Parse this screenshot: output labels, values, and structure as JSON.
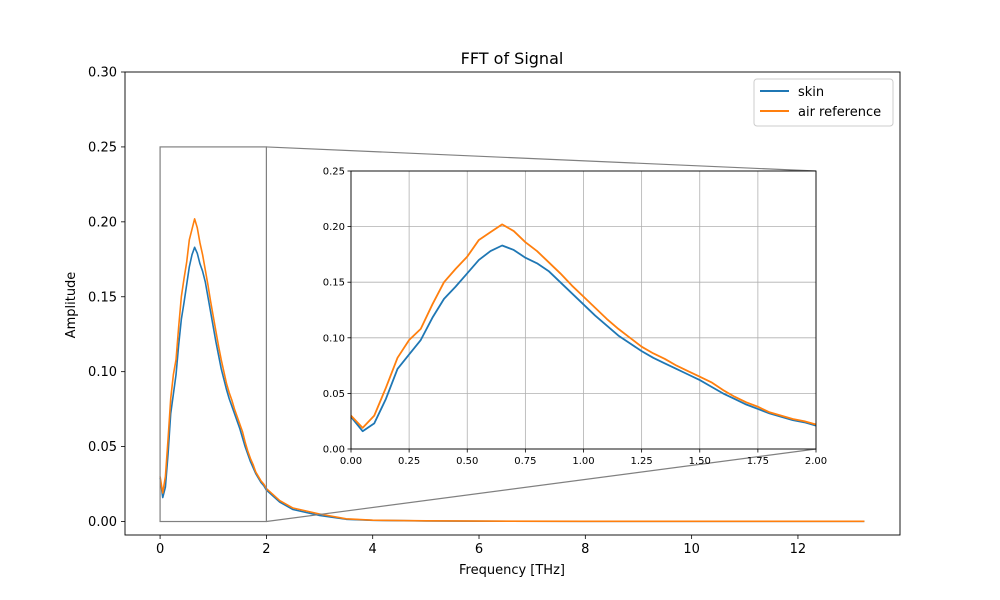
{
  "chart_data": {
    "type": "line",
    "title": "FFT of Signal",
    "xlabel": "Frequency [THz]",
    "ylabel": "Amplitude",
    "xlim": [
      -0.66,
      13.92
    ],
    "ylim": [
      -0.009,
      0.3
    ],
    "xticks": [
      "0",
      "2",
      "4",
      "6",
      "8",
      "10",
      "12"
    ],
    "yticks": [
      "0.00",
      "0.05",
      "0.10",
      "0.15",
      "0.20",
      "0.25",
      "0.30"
    ],
    "legend_position": "top-right",
    "series": [
      {
        "name": "skin",
        "color": "#1f77b4",
        "x": [
          0,
          0.05,
          0.1,
          0.15,
          0.2,
          0.25,
          0.3,
          0.35,
          0.4,
          0.45,
          0.5,
          0.55,
          0.6,
          0.65,
          0.7,
          0.75,
          0.8,
          0.85,
          0.9,
          0.95,
          1.0,
          1.05,
          1.1,
          1.15,
          1.2,
          1.25,
          1.3,
          1.35,
          1.4,
          1.45,
          1.5,
          1.55,
          1.6,
          1.65,
          1.7,
          1.75,
          1.8,
          1.85,
          1.9,
          1.95,
          2.0,
          2.25,
          2.5,
          3.0,
          3.5,
          4.0,
          5.0,
          6.0,
          8.0,
          10.0,
          12.0,
          13.25
        ],
        "y": [
          0.029,
          0.016,
          0.023,
          0.045,
          0.072,
          0.085,
          0.098,
          0.118,
          0.135,
          0.146,
          0.158,
          0.17,
          0.178,
          0.183,
          0.179,
          0.172,
          0.167,
          0.16,
          0.15,
          0.14,
          0.13,
          0.12,
          0.111,
          0.102,
          0.095,
          0.088,
          0.082,
          0.077,
          0.072,
          0.067,
          0.062,
          0.056,
          0.05,
          0.045,
          0.04,
          0.036,
          0.032,
          0.029,
          0.026,
          0.024,
          0.021,
          0.013,
          0.008,
          0.004,
          0.0015,
          0.0008,
          0.0004,
          0.0002,
          0.0001,
          0.0001,
          0.0001,
          0.0001
        ]
      },
      {
        "name": "air reference",
        "color": "#ff7f0e",
        "x": [
          0,
          0.05,
          0.1,
          0.15,
          0.2,
          0.25,
          0.3,
          0.35,
          0.4,
          0.45,
          0.5,
          0.55,
          0.6,
          0.65,
          0.7,
          0.75,
          0.8,
          0.85,
          0.9,
          0.95,
          1.0,
          1.05,
          1.1,
          1.15,
          1.2,
          1.25,
          1.3,
          1.35,
          1.4,
          1.45,
          1.5,
          1.55,
          1.6,
          1.65,
          1.7,
          1.75,
          1.8,
          1.85,
          1.9,
          1.95,
          2.0,
          2.25,
          2.5,
          3.0,
          3.5,
          4.0,
          5.0,
          6.0,
          8.0,
          10.0,
          12.0,
          13.25
        ],
        "y": [
          0.03,
          0.019,
          0.03,
          0.055,
          0.082,
          0.098,
          0.108,
          0.13,
          0.15,
          0.162,
          0.173,
          0.188,
          0.195,
          0.202,
          0.196,
          0.186,
          0.178,
          0.168,
          0.158,
          0.147,
          0.137,
          0.127,
          0.117,
          0.108,
          0.1,
          0.092,
          0.086,
          0.081,
          0.075,
          0.07,
          0.065,
          0.06,
          0.053,
          0.047,
          0.042,
          0.038,
          0.033,
          0.03,
          0.027,
          0.025,
          0.022,
          0.014,
          0.009,
          0.005,
          0.0018,
          0.0009,
          0.0005,
          0.0003,
          0.0001,
          0.0001,
          0.0001,
          0.0001
        ]
      }
    ],
    "inset": {
      "xlim": [
        0,
        2.0
      ],
      "ylim": [
        0,
        0.25
      ],
      "xticks": [
        "0.00",
        "0.25",
        "0.50",
        "0.75",
        "1.00",
        "1.25",
        "1.50",
        "1.75",
        "2.00"
      ],
      "yticks": [
        "0.00",
        "0.05",
        "0.10",
        "0.15",
        "0.20",
        "0.25"
      ],
      "grid": true
    },
    "grid": false
  }
}
